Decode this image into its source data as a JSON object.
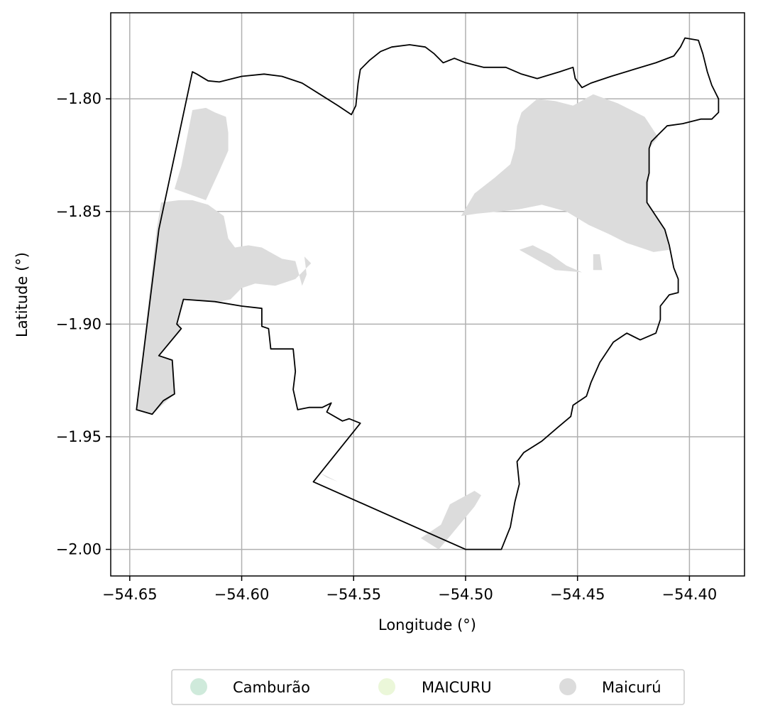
{
  "chart_data": {
    "type": "map",
    "xlabel": "Longitude (°)",
    "ylabel": "Latitude (°)",
    "xlim": [
      -54.6585,
      -54.3754
    ],
    "ylim": [
      -2.0118,
      -1.7618
    ],
    "x_ticks": [
      -54.65,
      -54.6,
      -54.55,
      -54.5,
      -54.45,
      -54.4
    ],
    "x_tick_labels": [
      "−54.65",
      "−54.60",
      "−54.55",
      "−54.50",
      "−54.45",
      "−54.40"
    ],
    "y_ticks": [
      -1.8,
      -1.85,
      -1.9,
      -1.95,
      -2.0
    ],
    "y_tick_labels": [
      "−1.80",
      "−1.85",
      "−1.90",
      "−1.95",
      "−2.00"
    ],
    "grid": true,
    "legend_position": "bottom-center",
    "legend": [
      {
        "label": "Camburão",
        "color": "#cfeadb"
      },
      {
        "label": "MAICURU",
        "color": "#ebf7d9"
      },
      {
        "label": "Maicurú",
        "color": "#dcdcdc"
      }
    ],
    "boundary": [
      [
        -54.622,
        -1.788
      ],
      [
        -54.62,
        -1.789
      ],
      [
        -54.615,
        -1.792
      ],
      [
        -54.61,
        -1.7925
      ],
      [
        -54.6,
        -1.79
      ],
      [
        -54.59,
        -1.789
      ],
      [
        -54.582,
        -1.79
      ],
      [
        -54.573,
        -1.793
      ],
      [
        -54.565,
        -1.798
      ],
      [
        -54.557,
        -1.803
      ],
      [
        -54.551,
        -1.807
      ],
      [
        -54.549,
        -1.803
      ],
      [
        -54.548,
        -1.793
      ],
      [
        -54.547,
        -1.787
      ],
      [
        -54.543,
        -1.783
      ],
      [
        -54.538,
        -1.779
      ],
      [
        -54.533,
        -1.777
      ],
      [
        -54.525,
        -1.776
      ],
      [
        -54.518,
        -1.777
      ],
      [
        -54.514,
        -1.78
      ],
      [
        -54.51,
        -1.784
      ],
      [
        -54.505,
        -1.782
      ],
      [
        -54.5,
        -1.784
      ],
      [
        -54.492,
        -1.786
      ],
      [
        -54.482,
        -1.786
      ],
      [
        -54.475,
        -1.789
      ],
      [
        -54.468,
        -1.791
      ],
      [
        -54.458,
        -1.788
      ],
      [
        -54.452,
        -1.786
      ],
      [
        -54.451,
        -1.791
      ],
      [
        -54.448,
        -1.795
      ],
      [
        -54.444,
        -1.793
      ],
      [
        -54.435,
        -1.79
      ],
      [
        -54.425,
        -1.787
      ],
      [
        -54.415,
        -1.784
      ],
      [
        -54.407,
        -1.781
      ],
      [
        -54.404,
        -1.777
      ],
      [
        -54.402,
        -1.773
      ],
      [
        -54.396,
        -1.774
      ],
      [
        -54.394,
        -1.78
      ],
      [
        -54.392,
        -1.788
      ],
      [
        -54.39,
        -1.794
      ],
      [
        -54.387,
        -1.8
      ],
      [
        -54.387,
        -1.806
      ],
      [
        -54.39,
        -1.809
      ],
      [
        -54.395,
        -1.809
      ],
      [
        -54.403,
        -1.811
      ],
      [
        -54.41,
        -1.812
      ],
      [
        -54.414,
        -1.816
      ],
      [
        -54.417,
        -1.819
      ],
      [
        -54.418,
        -1.822
      ],
      [
        -54.418,
        -1.833
      ],
      [
        -54.419,
        -1.837
      ],
      [
        -54.419,
        -1.846
      ],
      [
        -54.415,
        -1.852
      ],
      [
        -54.411,
        -1.858
      ],
      [
        -54.409,
        -1.865
      ],
      [
        -54.407,
        -1.875
      ],
      [
        -54.405,
        -1.88
      ],
      [
        -54.405,
        -1.886
      ],
      [
        -54.409,
        -1.887
      ],
      [
        -54.413,
        -1.892
      ],
      [
        -54.413,
        -1.898
      ],
      [
        -54.415,
        -1.904
      ],
      [
        -54.422,
        -1.907
      ],
      [
        -54.428,
        -1.904
      ],
      [
        -54.434,
        -1.908
      ],
      [
        -54.44,
        -1.917
      ],
      [
        -54.444,
        -1.926
      ],
      [
        -54.446,
        -1.932
      ],
      [
        -54.452,
        -1.936
      ],
      [
        -54.453,
        -1.941
      ],
      [
        -54.459,
        -1.946
      ],
      [
        -54.466,
        -1.952
      ],
      [
        -54.474,
        -1.957
      ],
      [
        -54.477,
        -1.961
      ],
      [
        -54.476,
        -1.971
      ],
      [
        -54.478,
        -1.979
      ],
      [
        -54.48,
        -1.99
      ],
      [
        -54.484,
        -2.0
      ],
      [
        -54.5,
        -2.0
      ],
      [
        -54.568,
        -1.97
      ],
      [
        -54.547,
        -1.944
      ],
      [
        -54.552,
        -1.942
      ],
      [
        -54.555,
        -1.943
      ],
      [
        -54.562,
        -1.939
      ],
      [
        -54.56,
        -1.935
      ],
      [
        -54.564,
        -1.937
      ],
      [
        -54.57,
        -1.937
      ],
      [
        -54.575,
        -1.938
      ],
      [
        -54.577,
        -1.929
      ],
      [
        -54.576,
        -1.921
      ],
      [
        -54.577,
        -1.911
      ],
      [
        -54.587,
        -1.911
      ],
      [
        -54.588,
        -1.902
      ],
      [
        -54.591,
        -1.901
      ],
      [
        -54.591,
        -1.893
      ],
      [
        -54.6,
        -1.892
      ],
      [
        -54.612,
        -1.89
      ],
      [
        -54.626,
        -1.889
      ],
      [
        -54.629,
        -1.9
      ],
      [
        -54.627,
        -1.902
      ],
      [
        -54.637,
        -1.914
      ],
      [
        -54.631,
        -1.916
      ],
      [
        -54.63,
        -1.931
      ],
      [
        -54.635,
        -1.934
      ],
      [
        -54.64,
        -1.94
      ],
      [
        -54.647,
        -1.938
      ],
      [
        -54.637,
        -1.858
      ],
      [
        -54.622,
        -1.788
      ]
    ],
    "maicuru_patches": [
      [
        [
          -54.638,
          -1.858
        ],
        [
          -54.636,
          -1.846
        ],
        [
          -54.628,
          -1.845
        ],
        [
          -54.622,
          -1.845
        ],
        [
          -54.615,
          -1.847
        ],
        [
          -54.608,
          -1.852
        ],
        [
          -54.606,
          -1.862
        ],
        [
          -54.603,
          -1.866
        ],
        [
          -54.597,
          -1.865
        ],
        [
          -54.591,
          -1.866
        ],
        [
          -54.582,
          -1.871
        ],
        [
          -54.576,
          -1.872
        ],
        [
          -54.573,
          -1.883
        ],
        [
          -54.571,
          -1.878
        ],
        [
          -54.572,
          -1.87
        ],
        [
          -54.569,
          -1.873
        ],
        [
          -54.576,
          -1.88
        ],
        [
          -54.585,
          -1.883
        ],
        [
          -54.594,
          -1.882
        ],
        [
          -54.6,
          -1.884
        ],
        [
          -54.605,
          -1.889
        ],
        [
          -54.61,
          -1.89
        ],
        [
          -54.626,
          -1.889
        ],
        [
          -54.629,
          -1.9
        ],
        [
          -54.627,
          -1.902
        ],
        [
          -54.637,
          -1.914
        ],
        [
          -54.631,
          -1.916
        ],
        [
          -54.63,
          -1.931
        ],
        [
          -54.64,
          -1.94
        ],
        [
          -54.647,
          -1.938
        ]
      ],
      [
        [
          -54.622,
          -1.805
        ],
        [
          -54.616,
          -1.804
        ],
        [
          -54.612,
          -1.806
        ],
        [
          -54.607,
          -1.808
        ],
        [
          -54.606,
          -1.815
        ],
        [
          -54.606,
          -1.823
        ],
        [
          -54.61,
          -1.832
        ],
        [
          -54.616,
          -1.845
        ],
        [
          -54.63,
          -1.84
        ],
        [
          -54.627,
          -1.83
        ],
        [
          -54.625,
          -1.82
        ]
      ],
      [
        [
          -54.475,
          -1.806
        ],
        [
          -54.468,
          -1.8
        ],
        [
          -54.46,
          -1.801
        ],
        [
          -54.452,
          -1.803
        ],
        [
          -54.443,
          -1.798
        ],
        [
          -54.432,
          -1.802
        ],
        [
          -54.42,
          -1.808
        ],
        [
          -54.414,
          -1.817
        ],
        [
          -54.418,
          -1.822
        ],
        [
          -54.418,
          -1.833
        ],
        [
          -54.419,
          -1.846
        ],
        [
          -54.411,
          -1.858
        ],
        [
          -54.409,
          -1.867
        ],
        [
          -54.416,
          -1.868
        ],
        [
          -54.422,
          -1.866
        ],
        [
          -54.428,
          -1.864
        ],
        [
          -54.436,
          -1.86
        ],
        [
          -54.445,
          -1.856
        ],
        [
          -54.455,
          -1.85
        ],
        [
          -54.466,
          -1.847
        ],
        [
          -54.476,
          -1.849
        ],
        [
          -54.485,
          -1.85
        ],
        [
          -54.495,
          -1.851
        ],
        [
          -54.502,
          -1.852
        ],
        [
          -54.496,
          -1.842
        ],
        [
          -54.487,
          -1.835
        ],
        [
          -54.48,
          -1.829
        ],
        [
          -54.478,
          -1.822
        ],
        [
          -54.477,
          -1.812
        ]
      ],
      [
        [
          -54.476,
          -1.867
        ],
        [
          -54.47,
          -1.865
        ],
        [
          -54.462,
          -1.869
        ],
        [
          -54.455,
          -1.874
        ],
        [
          -54.448,
          -1.877
        ],
        [
          -54.46,
          -1.876
        ]
      ],
      [
        [
          -54.443,
          -1.869
        ],
        [
          -54.44,
          -1.869
        ],
        [
          -54.439,
          -1.876
        ],
        [
          -54.443,
          -1.876
        ]
      ],
      [
        [
          -54.565,
          -1.966
        ],
        [
          -54.562,
          -1.968
        ],
        [
          -54.557,
          -1.97
        ]
      ],
      [
        [
          -54.511,
          -1.989
        ],
        [
          -54.507,
          -1.98
        ],
        [
          -54.496,
          -1.974
        ],
        [
          -54.493,
          -1.976
        ],
        [
          -54.496,
          -1.981
        ],
        [
          -54.506,
          -1.993
        ],
        [
          -54.512,
          -2.0
        ],
        [
          -54.52,
          -1.995
        ]
      ]
    ]
  }
}
